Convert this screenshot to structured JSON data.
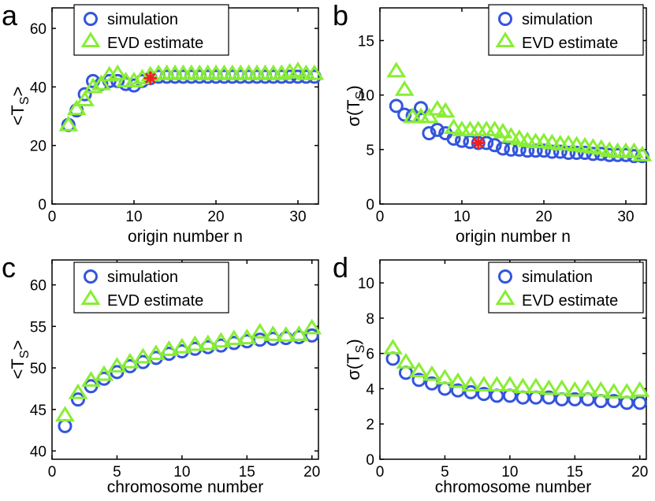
{
  "colors": {
    "simulation": "#3355dd",
    "evd": "#88ee33",
    "star": "#ee2222",
    "axis": "#000000"
  },
  "chart_data": [
    {
      "panel_label": "a",
      "type": "scatter",
      "ylabel_main": "<T",
      "ylabel_sub": "S",
      "ylabel_tail": ">",
      "xlabel": "origin number n",
      "xlim": [
        0,
        32.5
      ],
      "ylim": [
        0,
        67
      ],
      "xticks": [
        0,
        10,
        20,
        30
      ],
      "yticks": [
        0,
        20,
        40,
        60
      ],
      "legend": {
        "placement": "top-center",
        "entries": [
          "simulation",
          "EVD estimate"
        ]
      },
      "series": [
        {
          "name": "simulation",
          "marker": "circle",
          "x": [
            2,
            3,
            4,
            5,
            6,
            7,
            8,
            9,
            10,
            11,
            12,
            13,
            14,
            15,
            16,
            17,
            18,
            19,
            20,
            21,
            22,
            23,
            24,
            25,
            26,
            27,
            28,
            29,
            30,
            31,
            32
          ],
          "y": [
            27,
            32,
            37.5,
            42,
            41,
            42,
            42,
            41,
            40.5,
            42,
            43,
            43.5,
            43.5,
            43.5,
            43.5,
            43.5,
            43.5,
            43.5,
            43.5,
            43.5,
            43.5,
            43.5,
            43.5,
            43.5,
            43.5,
            43.5,
            43.5,
            43.5,
            43.5,
            43.5,
            43.5
          ]
        },
        {
          "name": "EVD estimate",
          "marker": "triangle",
          "x": [
            2,
            3,
            4,
            5,
            6,
            7,
            8,
            9,
            10,
            11,
            12,
            13,
            14,
            15,
            16,
            17,
            18,
            19,
            20,
            21,
            22,
            23,
            24,
            25,
            26,
            27,
            28,
            29,
            30,
            31,
            32
          ],
          "y": [
            27,
            32.5,
            35.5,
            40,
            41,
            44,
            44.5,
            42,
            42,
            43,
            44,
            44.5,
            44.5,
            44.5,
            44.5,
            44.5,
            44.5,
            44.5,
            44.5,
            44.5,
            44.5,
            44.5,
            44.5,
            44.5,
            44.5,
            44.5,
            44.5,
            45,
            45.5,
            44.5,
            44.5
          ]
        }
      ],
      "highlight": {
        "x": 12,
        "y": 43
      }
    },
    {
      "panel_label": "b",
      "type": "scatter",
      "ylabel_main": "σ(T",
      "ylabel_sub": "S",
      "ylabel_tail": ")",
      "xlabel": "origin number n",
      "xlim": [
        0,
        32.5
      ],
      "ylim": [
        0,
        18
      ],
      "xticks": [
        0,
        10,
        20,
        30
      ],
      "yticks": [
        0,
        5,
        10,
        15
      ],
      "legend": {
        "placement": "top-right",
        "entries": [
          "simulation",
          "EVD estimate"
        ]
      },
      "series": [
        {
          "name": "simulation",
          "marker": "circle",
          "x": [
            2,
            3,
            4,
            5,
            6,
            7,
            8,
            9,
            10,
            11,
            12,
            13,
            14,
            15,
            16,
            17,
            18,
            19,
            20,
            21,
            22,
            23,
            24,
            25,
            26,
            27,
            28,
            29,
            30,
            31,
            32
          ],
          "y": [
            9,
            8.2,
            8.1,
            8.8,
            6.5,
            6.8,
            6.5,
            6,
            5.8,
            5.7,
            5.6,
            5.6,
            5.4,
            5.1,
            5,
            5,
            4.9,
            4.9,
            4.9,
            4.8,
            4.8,
            4.7,
            4.7,
            4.7,
            4.6,
            4.6,
            4.5,
            4.5,
            4.5,
            4.4,
            4.4
          ]
        },
        {
          "name": "EVD estimate",
          "marker": "triangle",
          "x": [
            2,
            3,
            4,
            5,
            6,
            7,
            8,
            9,
            10,
            11,
            12,
            13,
            14,
            15,
            16,
            17,
            18,
            19,
            20,
            21,
            22,
            23,
            24,
            25,
            26,
            27,
            28,
            29,
            30,
            31,
            32
          ],
          "y": [
            12.2,
            10.5,
            8,
            8,
            8,
            8.7,
            8.5,
            7,
            6.8,
            6.8,
            6.8,
            6.8,
            6.8,
            6.6,
            6.2,
            6,
            5.8,
            5.7,
            5.7,
            5.6,
            5.5,
            5.5,
            5.4,
            5.3,
            5.2,
            5.1,
            4.9,
            4.8,
            4.8,
            4.8,
            4.5
          ]
        }
      ],
      "highlight": {
        "x": 12,
        "y": 5.6
      }
    },
    {
      "panel_label": "c",
      "type": "scatter",
      "ylabel_main": "<T",
      "ylabel_sub": "S",
      "ylabel_tail": ">",
      "xlabel": "chromosome number",
      "xlim": [
        0,
        20.5
      ],
      "ylim": [
        39,
        63
      ],
      "xticks": [
        0,
        5,
        10,
        15,
        20
      ],
      "yticks": [
        40,
        45,
        50,
        55,
        60
      ],
      "legend": {
        "placement": "top-left",
        "entries": [
          "simulation",
          "EVD estimate"
        ]
      },
      "series": [
        {
          "name": "simulation",
          "marker": "circle",
          "x": [
            1,
            2,
            3,
            4,
            5,
            6,
            7,
            8,
            9,
            10,
            11,
            12,
            13,
            14,
            15,
            16,
            17,
            18,
            19,
            20
          ],
          "y": [
            43,
            46.2,
            47.8,
            48.7,
            49.5,
            50.2,
            50.7,
            51.2,
            51.7,
            52,
            52.3,
            52.5,
            52.7,
            53,
            53.2,
            53.4,
            53.5,
            53.6,
            53.7,
            53.9
          ]
        },
        {
          "name": "EVD estimate",
          "marker": "triangle",
          "x": [
            1,
            2,
            3,
            4,
            5,
            6,
            7,
            8,
            9,
            10,
            11,
            12,
            13,
            14,
            15,
            16,
            17,
            18,
            19,
            20
          ],
          "y": [
            44.3,
            47,
            48.5,
            49.2,
            50.2,
            50.7,
            51.3,
            51.7,
            52.2,
            52.5,
            52.8,
            52.9,
            53.2,
            53.5,
            53.6,
            54.3,
            54,
            53.9,
            54,
            54.8
          ]
        }
      ]
    },
    {
      "panel_label": "d",
      "type": "scatter",
      "ylabel_main": "σ(T",
      "ylabel_sub": "S",
      "ylabel_tail": ")",
      "xlabel": "chromosome number",
      "xlim": [
        0,
        20.5
      ],
      "ylim": [
        0,
        11.3
      ],
      "xticks": [
        0,
        5,
        10,
        15,
        20
      ],
      "yticks": [
        0,
        2,
        4,
        6,
        8,
        10
      ],
      "legend": {
        "placement": "top-right",
        "entries": [
          "simulation",
          "EVD estimate"
        ]
      },
      "series": [
        {
          "name": "simulation",
          "marker": "circle",
          "x": [
            1,
            2,
            3,
            4,
            5,
            6,
            7,
            8,
            9,
            10,
            11,
            12,
            13,
            14,
            15,
            16,
            17,
            18,
            19,
            20
          ],
          "y": [
            5.7,
            4.9,
            4.5,
            4.3,
            4,
            3.9,
            3.8,
            3.7,
            3.6,
            3.6,
            3.5,
            3.5,
            3.5,
            3.4,
            3.4,
            3.4,
            3.3,
            3.3,
            3.2,
            3.2
          ]
        },
        {
          "name": "EVD estimate",
          "marker": "triangle",
          "x": [
            1,
            2,
            3,
            4,
            5,
            6,
            7,
            8,
            9,
            10,
            11,
            12,
            13,
            14,
            15,
            16,
            17,
            18,
            19,
            20
          ],
          "y": [
            6.3,
            5.5,
            5,
            4.8,
            4.6,
            4.4,
            4.2,
            4.2,
            4.2,
            4.2,
            4.1,
            4.1,
            4,
            4,
            3.9,
            4,
            3.9,
            3.8,
            3.8,
            3.9
          ]
        }
      ]
    }
  ]
}
